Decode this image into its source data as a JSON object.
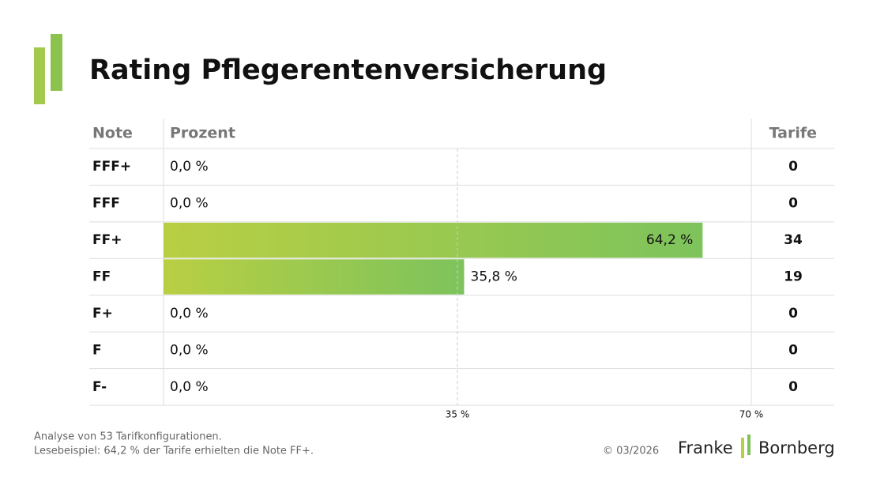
{
  "chart_data": {
    "type": "bar",
    "title": "Rating Pflegerentenversicherung",
    "column_headers": [
      "Note",
      "Prozent",
      "Tarife"
    ],
    "categories": [
      "FFF+",
      "FFF",
      "FF+",
      "FF",
      "F+",
      "F",
      "F-"
    ],
    "values": [
      0,
      0,
      64.2,
      35.8,
      0,
      0,
      0
    ],
    "value_labels": [
      "0,0 %",
      "0,0 %",
      "64,2 %",
      "35,8 %",
      "0,0 %",
      "0,0 %",
      "0,0 %"
    ],
    "tarife": [
      0,
      0,
      34,
      19,
      0,
      0,
      0
    ],
    "xlim": [
      0,
      70
    ],
    "xticks": [
      {
        "value": 35,
        "label": "35 %"
      },
      {
        "value": 70,
        "label": "70 %"
      }
    ],
    "colors": [
      "#b9cf43",
      "#7dc35c"
    ],
    "notes": [
      "Analyse von 53 Tarifkonfigurationen.",
      "Lesebeispiel: 64,2 % der Tarife erhielten die Note FF+."
    ],
    "copyright": "© 03/2026",
    "brand": [
      "Franke",
      "Bornberg"
    ]
  }
}
